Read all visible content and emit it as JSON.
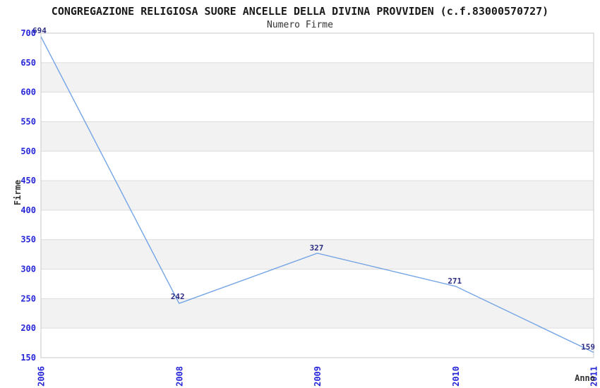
{
  "header": {
    "title": "CONGREGAZIONE RELIGIOSA SUORE ANCELLE DELLA DIVINA PROVVIDEN (c.f.83000570727)",
    "subtitle": "Numero Firme"
  },
  "chart_data": {
    "type": "line",
    "title": "CONGREGAZIONE RELIGIOSA SUORE ANCELLE DELLA DIVINA PROVVIDEN (c.f.83000570727)",
    "subtitle": "Numero Firme",
    "categories": [
      "2006",
      "2008",
      "2009",
      "2010",
      "2011"
    ],
    "values": [
      694,
      242,
      327,
      271,
      159
    ],
    "point_labels": [
      "694",
      "242",
      "327",
      "271",
      "159"
    ],
    "xlabel": "Anno",
    "ylabel": "Firme",
    "ylim": [
      150,
      700
    ],
    "ytick_step": 50,
    "ytick_labels": [
      "150",
      "200",
      "250",
      "300",
      "350",
      "400",
      "450",
      "500",
      "550",
      "600",
      "650",
      "700"
    ],
    "grid": "alternating-horizontal-bands",
    "legend": "none",
    "colors": {
      "line": "#74a4e6",
      "band_fill": "#f2f2f2",
      "grid_line": "#dcdcdc",
      "plot_border": "#c9c9c9",
      "tick_label": "#2626d8",
      "value_label": "#2e2e85",
      "axis_title": "#333333",
      "background": "#ffffff"
    }
  }
}
